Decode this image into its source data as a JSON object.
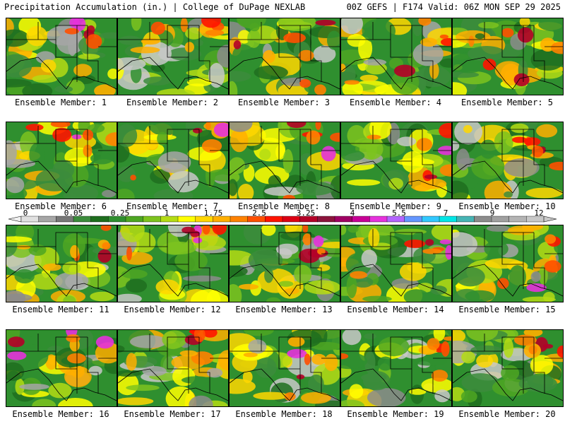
{
  "header": {
    "left": "Precipitation Accumulation (in.) | College of DuPage NEXLAB",
    "right": "00Z GEFS | F174 Valid: 06Z MON SEP 29 2025"
  },
  "members": [
    {
      "label": "Ensemble Member: 1"
    },
    {
      "label": "Ensemble Member: 2"
    },
    {
      "label": "Ensemble Member: 3"
    },
    {
      "label": "Ensemble Member: 4"
    },
    {
      "label": "Ensemble Member: 5"
    },
    {
      "label": "Ensemble Member: 6"
    },
    {
      "label": "Ensemble Member: 7"
    },
    {
      "label": "Ensemble Member: 8"
    },
    {
      "label": "Ensemble Member: 9"
    },
    {
      "label": "Ensemble Member: 10"
    },
    {
      "label": "Ensemble Member: 11"
    },
    {
      "label": "Ensemble Member: 12"
    },
    {
      "label": "Ensemble Member: 13"
    },
    {
      "label": "Ensemble Member: 14"
    },
    {
      "label": "Ensemble Member: 15"
    },
    {
      "label": "Ensemble Member: 16"
    },
    {
      "label": "Ensemble Member: 17"
    },
    {
      "label": "Ensemble Member: 18"
    },
    {
      "label": "Ensemble Member: 19"
    },
    {
      "label": "Ensemble Member: 20"
    }
  ],
  "legend": {
    "ticks": [
      "0",
      "0.05",
      "0.25",
      "1",
      "1.75",
      "2.5",
      "3.25",
      "4",
      "5.5",
      "7",
      "9",
      "12"
    ],
    "colors": [
      "#e1e1e1",
      "#a6a6a6",
      "#787878",
      "#3c8c3c",
      "#1e6e1e",
      "#2f8f2f",
      "#4da622",
      "#7dc31e",
      "#b4dc14",
      "#ffff00",
      "#ffd700",
      "#ffaf00",
      "#ff8200",
      "#ff5000",
      "#ff1400",
      "#dc0014",
      "#b40028",
      "#8c143c",
      "#a00064",
      "#c80096",
      "#e632dc",
      "#b464ff",
      "#6496ff",
      "#32c8ff",
      "#00e6e6",
      "#46b4b4",
      "#8c8c8c",
      "#a0a0a0",
      "#b4b4b4",
      "#c8c8c8"
    ]
  }
}
